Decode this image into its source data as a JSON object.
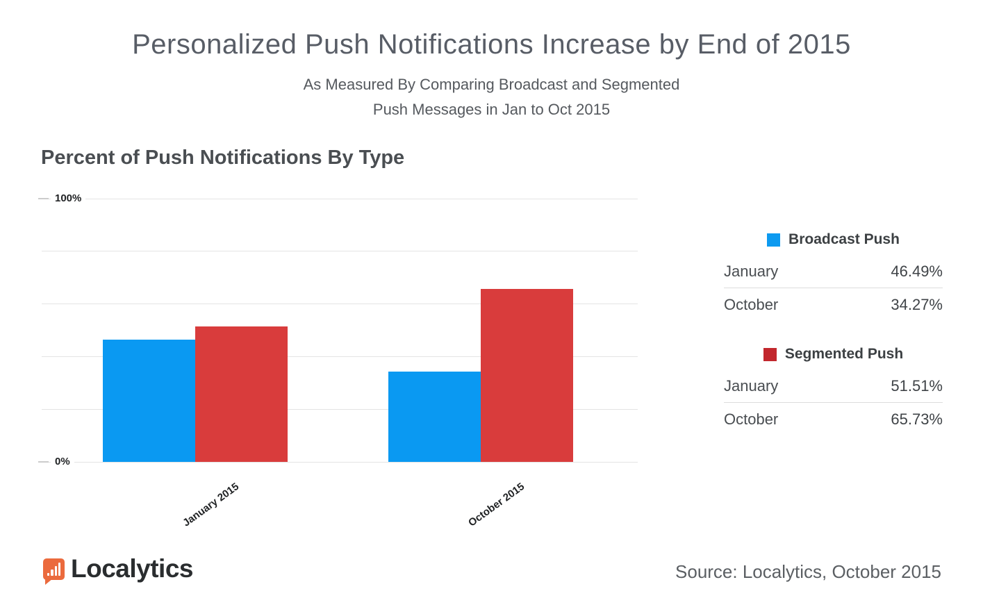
{
  "header": {
    "title": "Personalized Push Notifications Increase by End of 2015",
    "subtitle_line1": "As Measured By Comparing Broadcast and Segmented",
    "subtitle_line2": "Push Messages in Jan to Oct 2015"
  },
  "chart": {
    "heading": "Percent of Push Notifications By Type",
    "y_max_label": "100%",
    "y_min_label": "0%"
  },
  "chart_data": {
    "type": "bar",
    "title": "Percent of Push Notifications By Type",
    "categories": [
      "January 2015",
      "October 2015"
    ],
    "series": [
      {
        "name": "Broadcast Push",
        "color": "#0a99f2",
        "values": [
          46.49,
          34.27
        ]
      },
      {
        "name": "Segmented Push",
        "color": "#d93c3c",
        "values": [
          51.51,
          65.73
        ]
      }
    ],
    "ylabel": "Percent of push notifications",
    "ylim": [
      0,
      100
    ],
    "grid_step_percent": 20,
    "y_tick_labels_shown": [
      "100%",
      "0%"
    ],
    "grid": "horizontal",
    "legend_position": "right"
  },
  "legend": {
    "panels": [
      {
        "title": "Broadcast Push",
        "swatch_color": "#0d9af0",
        "rows": [
          {
            "label": "January",
            "value": "46.49%"
          },
          {
            "label": "October",
            "value": "34.27%"
          }
        ]
      },
      {
        "title": "Segmented Push",
        "swatch_color": "#c2272d",
        "rows": [
          {
            "label": "January",
            "value": "51.51%"
          },
          {
            "label": "October",
            "value": "65.73%"
          }
        ]
      }
    ]
  },
  "footer": {
    "brand": "Localytics",
    "source": "Source: Localytics, October 2015"
  }
}
